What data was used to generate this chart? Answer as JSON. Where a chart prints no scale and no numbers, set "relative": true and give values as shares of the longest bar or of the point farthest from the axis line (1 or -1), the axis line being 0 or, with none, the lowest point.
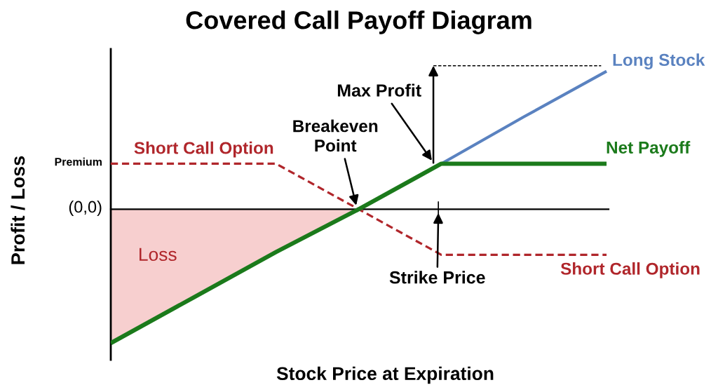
{
  "chart_data": {
    "type": "line",
    "title": "Covered Call Payoff Diagram",
    "xlabel": "Stock Price at Expiration",
    "ylabel": "Profit / Loss",
    "relative": true,
    "categories": [
      null,
      null,
      null,
      null,
      null,
      null,
      null
    ],
    "series": [
      {
        "type": "area",
        "color": "#f7cfcf",
        "values": [
          -0.97,
          -0.64,
          -0.31,
          0.0,
          null,
          null,
          null
        ]
      },
      {
        "name": "Long Stock",
        "color": "#5a82c0",
        "values": [
          null,
          null,
          null,
          null,
          0.33,
          0.67,
          1.0
        ]
      },
      {
        "name": "Short Call Option",
        "color": "#b0262b",
        "line_style": "dashed",
        "values": [
          0.33,
          0.33,
          0.33,
          0.0,
          -0.33,
          -0.33,
          -0.33
        ]
      },
      {
        "name": "Net Payoff",
        "color": "#1b7a1b",
        "values": [
          -0.97,
          -0.64,
          -0.31,
          0.0,
          0.33,
          0.33,
          0.33
        ]
      }
    ],
    "annotations": [
      "Premium",
      "(0,0)",
      "Short Call Option",
      "Breakeven\nPoint",
      "Max Profit",
      "Strike Price",
      "Loss"
    ],
    "ref_lines": [
      {
        "axis": "y",
        "value": 1.04,
        "color": "#000000",
        "line_style": "dashed"
      }
    ]
  }
}
